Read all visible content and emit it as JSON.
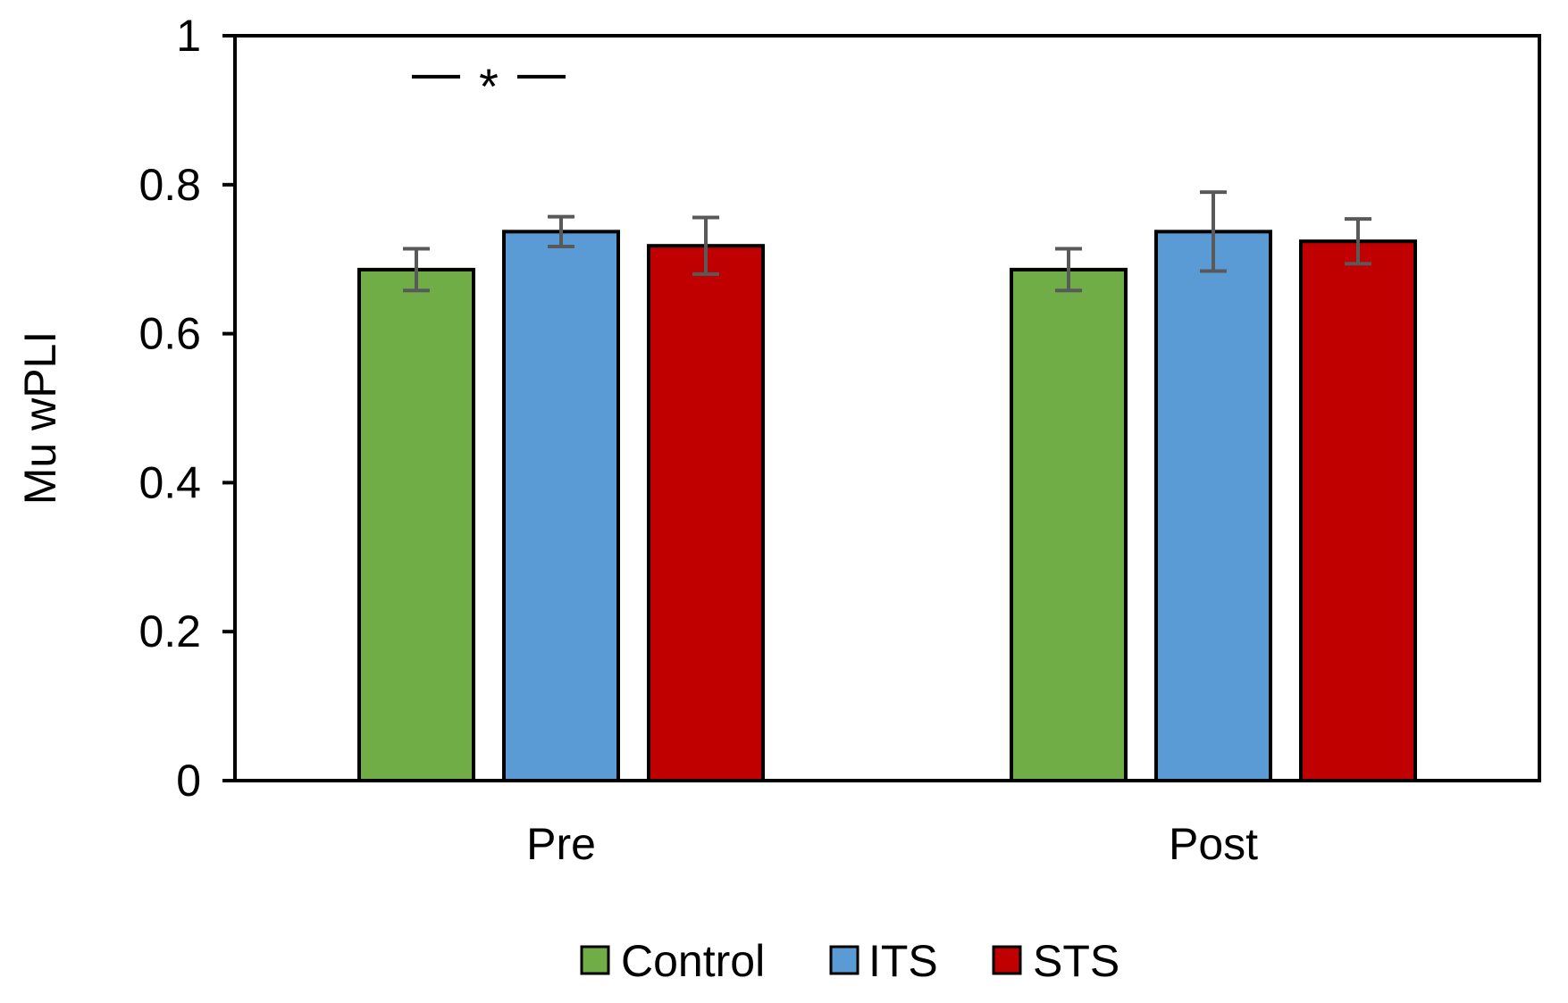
{
  "chart_data": {
    "type": "bar",
    "title": "",
    "xlabel": "",
    "ylabel": "Mu wPLI",
    "ylim": [
      0,
      1
    ],
    "yticks": [
      0,
      0.2,
      0.4,
      0.6,
      0.8,
      1
    ],
    "ytick_labels": [
      "0",
      "0.2",
      "0.4",
      "0.6",
      "0.8",
      "1"
    ],
    "categories": [
      "Pre",
      "Post"
    ],
    "series": [
      {
        "name": "Control",
        "color": "#70ad47",
        "values": [
          0.686,
          0.686
        ],
        "errors": [
          0.028,
          0.028
        ]
      },
      {
        "name": "ITS",
        "color": "#5b9bd5",
        "values": [
          0.737,
          0.737
        ],
        "errors": [
          0.02,
          0.053
        ]
      },
      {
        "name": "STS",
        "color": "#c00000",
        "values": [
          0.718,
          0.724
        ],
        "errors": [
          0.038,
          0.03
        ]
      }
    ],
    "grid": false,
    "legend_position": "bottom",
    "annotations": [
      {
        "text": "*",
        "category": "Pre",
        "between": [
          "Control",
          "ITS"
        ],
        "y": 0.945
      }
    ]
  }
}
